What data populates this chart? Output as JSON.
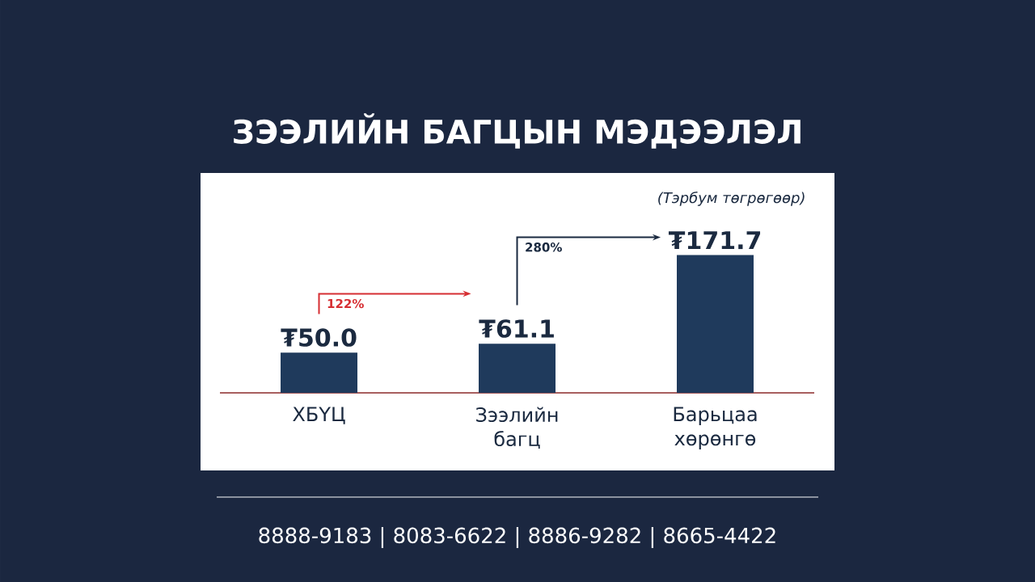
{
  "chart_data": {
    "type": "bar",
    "title": "ЗЭЭЛИЙН БАГЦЫН МЭДЭЭЛЭЛ",
    "categories": [
      "ХБҮЦ",
      "Зээлийн багц",
      "Барьцаа хөрөнгө"
    ],
    "values": [
      50.0,
      61.1,
      171.7
    ],
    "value_labels": [
      "₮50.0",
      "₮61.1",
      "₮171.7"
    ],
    "color": "#1f3a5c",
    "annotations": [
      "(Тэрбум төгрөгөөр)",
      "122%",
      "280%",
      "8888-9183 | 8083-6622 | 8886-9282 | 8665-4422"
    ]
  }
}
